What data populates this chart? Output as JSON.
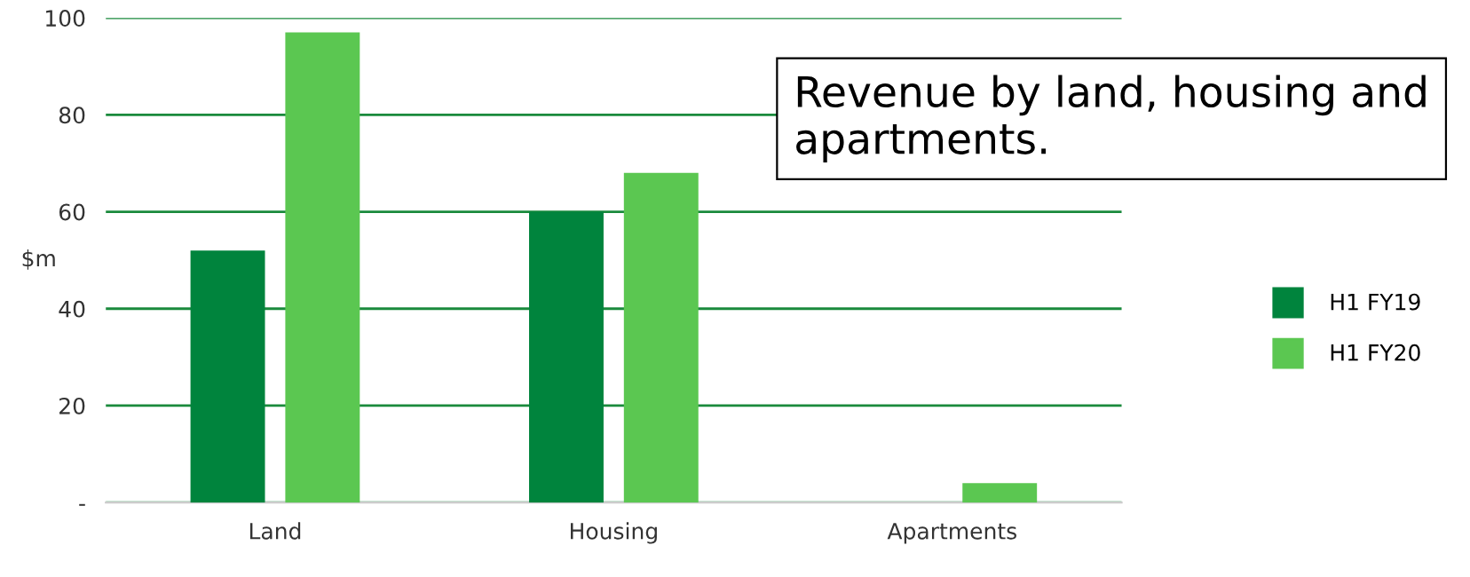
{
  "chart_data": {
    "type": "bar",
    "ylabel": "$m",
    "categories": [
      "Land",
      "Housing",
      "Apartments"
    ],
    "series": [
      {
        "name": "H1 FY19",
        "color": "#00843d",
        "values": [
          52,
          60,
          0
        ]
      },
      {
        "name": "H1 FY20",
        "color": "#5bc751",
        "values": [
          97,
          68,
          4
        ]
      }
    ],
    "ylim": [
      0,
      100
    ],
    "yticks": [
      {
        "value": 0,
        "label": "-"
      },
      20,
      40,
      60,
      80,
      100
    ],
    "grid": "y",
    "legend": "right",
    "annotations": [
      "Revenue by land, housing and apartments."
    ]
  }
}
